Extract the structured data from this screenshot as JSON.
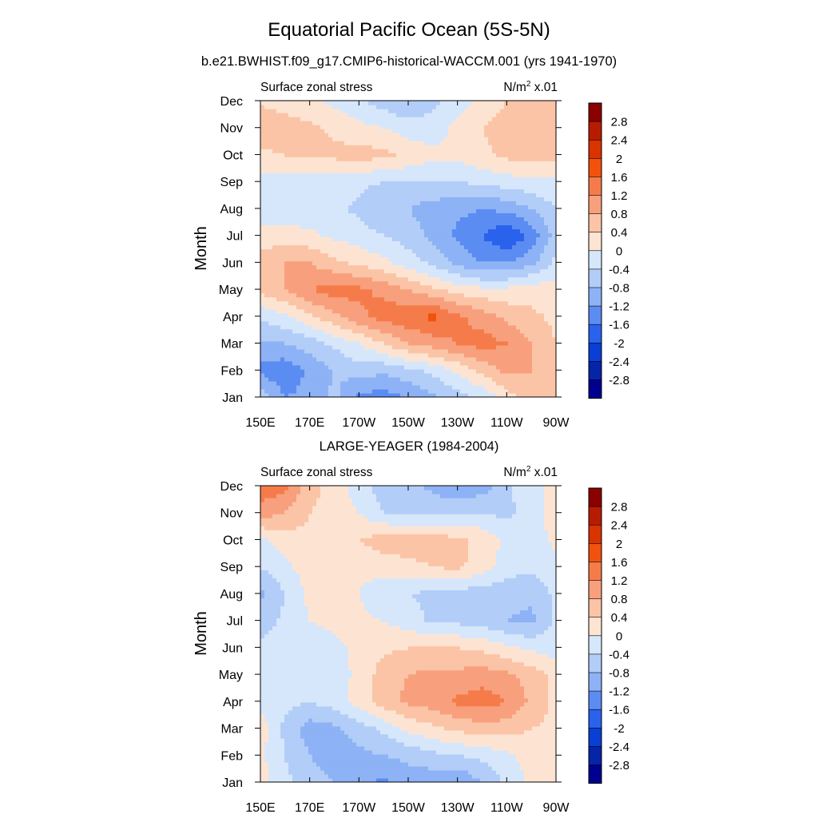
{
  "figure": {
    "title": "Equatorial Pacific Ocean (5S-5N)"
  },
  "colorbar": {
    "levels": [
      "2.8",
      "2.4",
      "2",
      "1.6",
      "1.2",
      "0.8",
      "0.4",
      "0",
      "-0.4",
      "-0.8",
      "-1.2",
      "-1.6",
      "-2",
      "-2.4",
      "-2.8"
    ],
    "colors": [
      "#8b0000",
      "#b81c00",
      "#d93300",
      "#f2520e",
      "#f57c4a",
      "#f8a07d",
      "#fbc4a6",
      "#fde4d2",
      "#d6e7fb",
      "#b2cdf8",
      "#8db2f5",
      "#5b8cf2",
      "#2a62ee",
      "#0a3fd6",
      "#0624a8",
      "#000090"
    ]
  },
  "chart_data": [
    {
      "type": "heatmap",
      "title": "b.e21.BWHIST.f09_g17.CMIP6-historical-WACCM.001 (yrs 1941-1970)",
      "left_string": "Surface zonal stress",
      "units_base": "N/m",
      "units_sup": "2",
      "units_suffix": " x.01",
      "ylabel": "Month",
      "x_ticks": [
        "150E",
        "170E",
        "170W",
        "150W",
        "130W",
        "110W",
        "90W"
      ],
      "y_ticks": [
        "Jan",
        "Feb",
        "Mar",
        "Apr",
        "May",
        "Jun",
        "Jul",
        "Aug",
        "Sep",
        "Oct",
        "Nov",
        "Dec"
      ],
      "x_range_deg_east": [
        150,
        270
      ],
      "z": [
        [
          -0.6,
          -1.2,
          -1.1,
          -0.7,
          -1.3,
          -1.4,
          -1.2,
          -0.9,
          -0.6,
          -0.3,
          0.2,
          0.7,
          0.8
        ],
        [
          -1.3,
          -1.5,
          -1.1,
          -0.8,
          -0.6,
          -0.7,
          -0.5,
          -0.3,
          0.1,
          0.5,
          0.9,
          0.8,
          0.5
        ],
        [
          -0.9,
          -0.8,
          -0.6,
          -0.3,
          0.0,
          0.4,
          0.8,
          1.0,
          1.2,
          1.4,
          1.2,
          0.8,
          0.4
        ],
        [
          -0.3,
          -0.1,
          0.3,
          0.7,
          1.1,
          1.4,
          1.5,
          1.7,
          1.3,
          1.0,
          0.7,
          0.5,
          0.3
        ],
        [
          0.5,
          0.8,
          1.2,
          1.4,
          1.3,
          1.1,
          0.8,
          0.5,
          0.2,
          0.1,
          0.1,
          0.2,
          0.2
        ],
        [
          0.7,
          0.8,
          0.8,
          0.5,
          0.3,
          0.1,
          -0.2,
          -0.5,
          -0.9,
          -1.2,
          -1.2,
          -0.9,
          -0.3
        ],
        [
          0.1,
          0.2,
          0.1,
          -0.1,
          -0.2,
          -0.4,
          -0.6,
          -0.9,
          -1.3,
          -1.6,
          -2.0,
          -1.5,
          -0.6
        ],
        [
          -0.2,
          -0.3,
          -0.3,
          -0.3,
          -0.5,
          -0.8,
          -0.8,
          -1.0,
          -1.1,
          -1.2,
          -1.1,
          -0.8,
          -0.4
        ],
        [
          -0.1,
          -0.2,
          -0.2,
          -0.2,
          -0.3,
          -0.4,
          -0.4,
          -0.4,
          -0.4,
          -0.3,
          -0.2,
          -0.1,
          -0.1
        ],
        [
          0.3,
          0.4,
          0.5,
          0.5,
          0.6,
          0.5,
          0.3,
          0.1,
          0.1,
          0.3,
          0.5,
          0.6,
          0.6
        ],
        [
          0.8,
          0.6,
          0.5,
          0.3,
          0.1,
          0.0,
          -0.2,
          -0.2,
          0.1,
          0.4,
          0.6,
          0.7,
          0.7
        ],
        [
          0.3,
          0.2,
          0.1,
          -0.1,
          -0.3,
          -0.6,
          -0.8,
          -0.5,
          -0.2,
          0.1,
          0.4,
          0.6,
          0.6
        ]
      ]
    },
    {
      "type": "heatmap",
      "title": "LARGE-YEAGER (1984-2004)",
      "left_string": "Surface zonal stress",
      "units_base": "N/m",
      "units_sup": "2",
      "units_suffix": " x.01",
      "ylabel": "Month",
      "x_ticks": [
        "150E",
        "170E",
        "170W",
        "150W",
        "130W",
        "110W",
        "90W"
      ],
      "y_ticks": [
        "Jan",
        "Feb",
        "Mar",
        "Apr",
        "May",
        "Jun",
        "Jul",
        "Aug",
        "Sep",
        "Oct",
        "Nov",
        "Dec"
      ],
      "x_range_deg_east": [
        150,
        270
      ],
      "z": [
        [
          0.2,
          -0.3,
          -0.6,
          -0.8,
          -1.0,
          -1.3,
          -1.0,
          -1.1,
          -1.2,
          -0.8,
          -0.3,
          0.1,
          0.3
        ],
        [
          0.1,
          -0.4,
          -0.8,
          -1.0,
          -0.9,
          -0.8,
          -0.7,
          -0.5,
          -0.4,
          -0.3,
          -0.1,
          0.2,
          0.3
        ],
        [
          0.2,
          -0.5,
          -1.0,
          -0.9,
          -0.6,
          -0.3,
          0.1,
          0.3,
          0.5,
          0.6,
          0.6,
          0.4,
          0.3
        ],
        [
          -0.1,
          -0.3,
          -0.4,
          -0.2,
          0.2,
          0.6,
          0.9,
          1.0,
          1.3,
          1.4,
          1.2,
          0.7,
          0.3
        ],
        [
          -0.1,
          -0.4,
          -0.4,
          -0.2,
          0.1,
          0.6,
          0.8,
          0.9,
          0.9,
          1.0,
          0.9,
          0.6,
          0.3
        ],
        [
          -0.3,
          -0.2,
          -0.2,
          -0.1,
          0.1,
          0.3,
          0.4,
          0.4,
          0.4,
          0.3,
          0.1,
          -0.1,
          -0.2
        ],
        [
          -0.6,
          -0.3,
          0.0,
          0.1,
          0.1,
          0.0,
          -0.2,
          -0.5,
          -0.5,
          -0.6,
          -0.8,
          -0.9,
          -0.3
        ],
        [
          -0.9,
          -0.4,
          0.1,
          0.2,
          0.0,
          -0.3,
          -0.4,
          -0.5,
          -0.6,
          -0.6,
          -0.7,
          -0.7,
          -0.3
        ],
        [
          -0.4,
          -0.1,
          0.2,
          0.3,
          0.1,
          0.2,
          0.3,
          0.4,
          0.5,
          0.2,
          -0.2,
          -0.3,
          -0.1
        ],
        [
          -0.1,
          0.2,
          0.3,
          0.3,
          0.4,
          0.6,
          0.6,
          0.6,
          0.5,
          0.3,
          -0.1,
          -0.2,
          0.1
        ],
        [
          1.0,
          0.8,
          0.4,
          0.2,
          0.0,
          -0.4,
          -0.5,
          -0.5,
          -0.4,
          -0.4,
          -0.5,
          -0.2,
          0.2
        ],
        [
          1.5,
          1.3,
          0.6,
          0.2,
          -0.2,
          -0.6,
          -0.7,
          -0.9,
          -1.2,
          -1.0,
          -0.5,
          -0.1,
          0.1
        ]
      ]
    }
  ]
}
